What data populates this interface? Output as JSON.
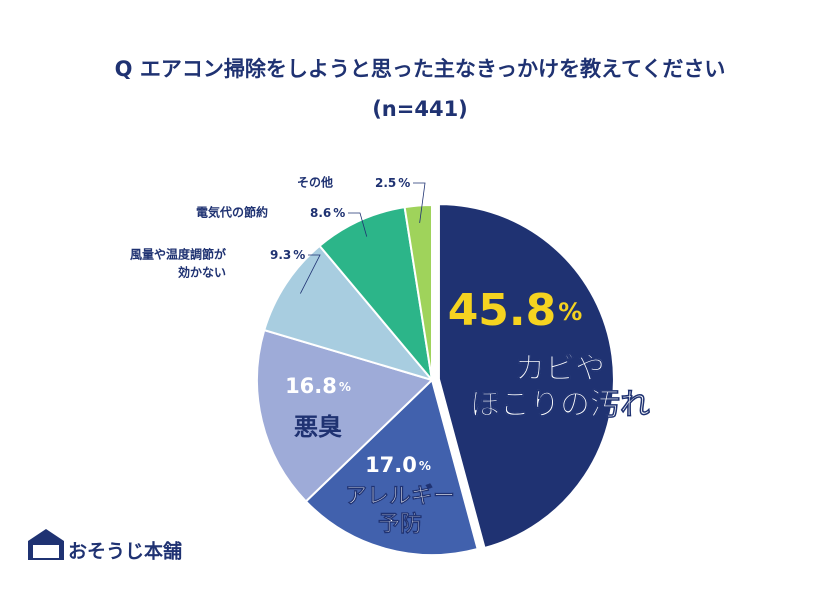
{
  "chart_data": {
    "type": "pie",
    "title": "Q エアコン掃除をしようと思った主なきっかけを教えてください",
    "subtitle": "(n=441)",
    "unit": "%",
    "categories": [
      [
        "カビや",
        "ほこりの汚れ"
      ],
      [
        "アレルギー",
        "予防"
      ],
      [
        "悪臭"
      ],
      [
        "風量や温度調節が",
        "効かない"
      ],
      [
        "電気代の節約"
      ],
      [
        "その他"
      ]
    ],
    "values": [
      45.8,
      17.0,
      16.8,
      9.3,
      8.6,
      2.5
    ],
    "value_labels": [
      "45.8",
      "17.0",
      "16.8",
      "9.3",
      "8.6",
      "2.5"
    ],
    "colors": [
      "#1f3272",
      "#4161ad",
      "#9eabd8",
      "#a8cde0",
      "#2cb589",
      "#9fd35b"
    ],
    "logo": "おそうじ本舗"
  }
}
